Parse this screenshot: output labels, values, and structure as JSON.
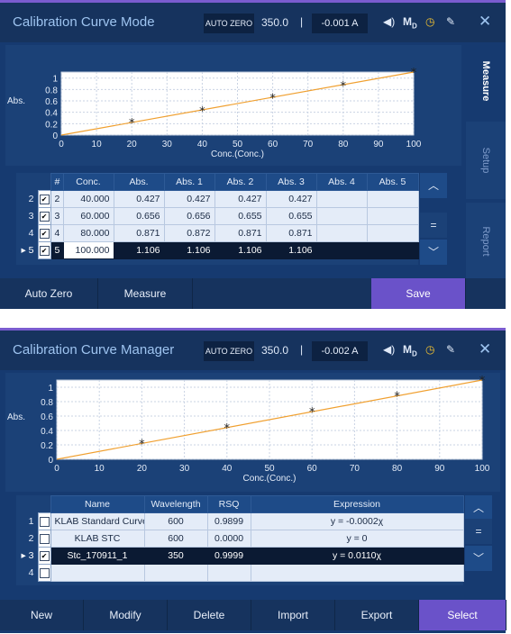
{
  "mode_screen": {
    "title": "Calibration Curve Mode",
    "auto_zero_label": "AUTO ZERO",
    "wavelength": "350.0",
    "separator": "|",
    "reading": "-0.001 A",
    "side_tabs": [
      "Measure",
      "Setup",
      "Report"
    ],
    "active_tab": "Measure",
    "chart_data": {
      "type": "scatter",
      "xlabel": "Conc.(Conc.)",
      "ylabel": "Abs.",
      "xlim": [
        0,
        100
      ],
      "ylim": [
        0,
        1.106
      ],
      "x_ticks": [
        "0",
        "10",
        "20",
        "30",
        "40",
        "50",
        "60",
        "70",
        "80",
        "90",
        "100"
      ],
      "y_ticks": [
        "0",
        "0.2",
        "0.4",
        "0.6",
        "0.8",
        "1"
      ],
      "points": [
        {
          "x": 20,
          "y": 0.22
        },
        {
          "x": 40,
          "y": 0.427
        },
        {
          "x": 60,
          "y": 0.656
        },
        {
          "x": 80,
          "y": 0.871
        },
        {
          "x": 100,
          "y": 1.106
        }
      ],
      "fit_line": {
        "x": [
          0,
          100
        ],
        "y": [
          0,
          1.106
        ]
      },
      "line_color": "#f0a030",
      "marker": "*"
    },
    "table": {
      "headers": [
        "#",
        "Conc.",
        "Abs.",
        "Abs. 1",
        "Abs. 2",
        "Abs. 3",
        "Abs. 4",
        "Abs. 5"
      ],
      "rows": [
        {
          "index": "2",
          "checked": true,
          "num": "2",
          "conc": "40.000",
          "abs": "0.427",
          "abs1": "0.427",
          "abs2": "0.427",
          "abs3": "0.427",
          "abs4": "",
          "abs5": "",
          "selected": false
        },
        {
          "index": "3",
          "checked": true,
          "num": "3",
          "conc": "60.000",
          "abs": "0.656",
          "abs1": "0.656",
          "abs2": "0.655",
          "abs3": "0.655",
          "abs4": "",
          "abs5": "",
          "selected": false
        },
        {
          "index": "4",
          "checked": true,
          "num": "4",
          "conc": "80.000",
          "abs": "0.871",
          "abs1": "0.872",
          "abs2": "0.871",
          "abs3": "0.871",
          "abs4": "",
          "abs5": "",
          "selected": false
        },
        {
          "index": "5",
          "checked": true,
          "num": "5",
          "conc": "100.000",
          "abs": "1.106",
          "abs1": "1.106",
          "abs2": "1.106",
          "abs3": "1.106",
          "abs4": "",
          "abs5": "",
          "selected": true
        }
      ]
    },
    "buttons": {
      "auto_zero": "Auto Zero",
      "measure": "Measure",
      "save": "Save"
    }
  },
  "manager_screen": {
    "title": "Calibration Curve Manager",
    "auto_zero_label": "AUTO ZERO",
    "wavelength": "350.0",
    "separator": "|",
    "reading": "-0.002 A",
    "chart_data": {
      "type": "scatter",
      "xlabel": "Conc.(Conc.)",
      "ylabel": "Abs.",
      "xlim": [
        0,
        100
      ],
      "ylim": [
        0,
        1.1
      ],
      "x_ticks": [
        "0",
        "10",
        "20",
        "30",
        "40",
        "50",
        "60",
        "70",
        "80",
        "90",
        "100"
      ],
      "y_ticks": [
        "0",
        "0.2",
        "0.4",
        "0.6",
        "0.8",
        "1"
      ],
      "points": [
        {
          "x": 20,
          "y": 0.22
        },
        {
          "x": 40,
          "y": 0.44
        },
        {
          "x": 60,
          "y": 0.66
        },
        {
          "x": 80,
          "y": 0.88
        },
        {
          "x": 100,
          "y": 1.1
        }
      ],
      "fit_line": {
        "x": [
          0,
          100
        ],
        "y": [
          0,
          1.1
        ]
      },
      "line_color": "#f0a030",
      "marker": "*"
    },
    "table": {
      "headers": [
        "Name",
        "Wavelength",
        "RSQ",
        "Expression"
      ],
      "rows": [
        {
          "index": "1",
          "checked": false,
          "name": "KLAB Standard Curve",
          "wavelength": "600",
          "rsq": "0.9899",
          "expression": "y = -0.0002χ",
          "selected": false
        },
        {
          "index": "2",
          "checked": false,
          "name": "KLAB STC",
          "wavelength": "600",
          "rsq": "0.0000",
          "expression": "y = 0",
          "selected": false
        },
        {
          "index": "3",
          "checked": true,
          "name": "Stc_170911_1",
          "wavelength": "350",
          "rsq": "0.9999",
          "expression": "y = 0.0110χ",
          "selected": true
        },
        {
          "index": "4",
          "checked": false,
          "name": "",
          "wavelength": "",
          "rsq": "",
          "expression": "",
          "selected": false
        }
      ]
    },
    "buttons": {
      "new": "New",
      "modify": "Modify",
      "delete": "Delete",
      "import": "Import",
      "export": "Export",
      "select": "Select"
    }
  },
  "icons": [
    "speaker-icon",
    "mode-icon",
    "clock-icon",
    "edit-icon",
    "close-icon",
    "chevron-up-icon",
    "equals-icon",
    "chevron-down-icon",
    "row-pointer-icon"
  ],
  "colors": {
    "background": "#163a70",
    "accent": "#6a52c9",
    "plot_line": "#f0a030",
    "header_text": "#9ec4f0"
  }
}
